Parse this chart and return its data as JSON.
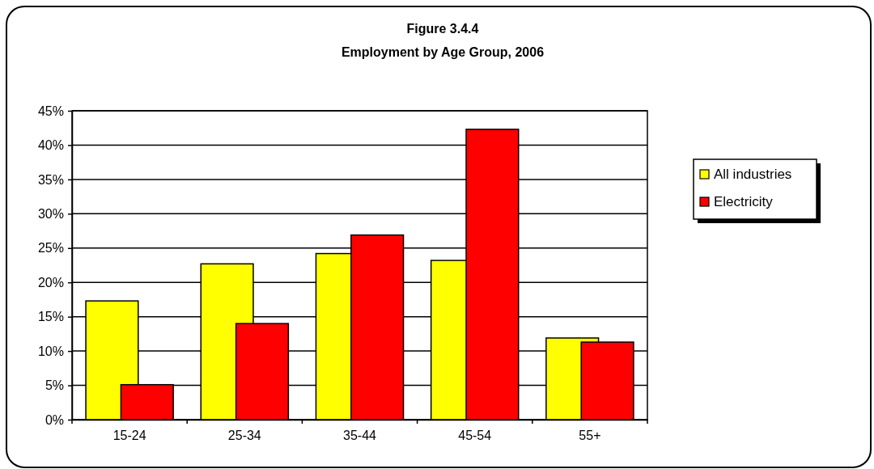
{
  "chart_data": {
    "type": "bar",
    "title": "Figure 3.4.4",
    "subtitle": "Employment by Age Group, 2006",
    "categories": [
      "15-24",
      "25-34",
      "35-44",
      "45-54",
      "55+"
    ],
    "series": [
      {
        "name": "All industries",
        "color": "#ffff00",
        "values": [
          17.3,
          22.7,
          24.2,
          23.2,
          11.9
        ]
      },
      {
        "name": "Electricity",
        "color": "#ff0000",
        "values": [
          5.1,
          14.0,
          26.9,
          42.3,
          11.3
        ]
      }
    ],
    "ylim": [
      0,
      45
    ],
    "yticks": [
      {
        "value": 0,
        "label": "0%"
      },
      {
        "value": 5,
        "label": "5%"
      },
      {
        "value": 10,
        "label": "10%"
      },
      {
        "value": 15,
        "label": "15%"
      },
      {
        "value": 20,
        "label": "20%"
      },
      {
        "value": 25,
        "label": "25%"
      },
      {
        "value": 30,
        "label": "30%"
      },
      {
        "value": 35,
        "label": "35%"
      },
      {
        "value": 40,
        "label": "40%"
      },
      {
        "value": 45,
        "label": "45%"
      }
    ],
    "grid": "y",
    "legend": "right"
  }
}
